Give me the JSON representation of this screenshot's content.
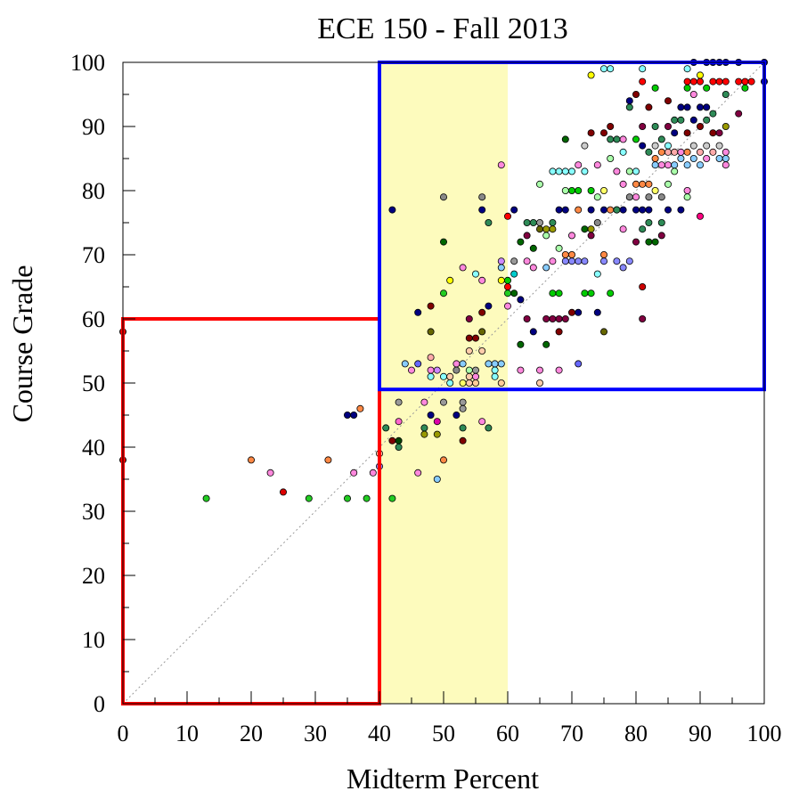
{
  "chart_data": {
    "type": "scatter",
    "title": "ECE 150 - Fall 2013",
    "xlabel": "Midterm Percent",
    "ylabel": "Course Grade",
    "xlim": [
      0,
      100
    ],
    "ylim": [
      0,
      100
    ],
    "xticks": [
      "0",
      "10",
      "20",
      "30",
      "40",
      "50",
      "60",
      "70",
      "80",
      "90",
      "100"
    ],
    "yticks": [
      "0",
      "10",
      "20",
      "30",
      "40",
      "50",
      "60",
      "70",
      "80",
      "90",
      "100"
    ],
    "grid": false,
    "diagonal_reference": true,
    "highlight_band": {
      "x": [
        40,
        60
      ],
      "color": "#fdfbbd"
    },
    "regions": [
      {
        "x": [
          0,
          40
        ],
        "y": [
          0,
          60
        ],
        "color": "#ff0000"
      },
      {
        "x": [
          40,
          100
        ],
        "y": [
          49,
          100
        ],
        "color": "#0000ff"
      }
    ],
    "points": [
      [
        0,
        58,
        "#cc0000"
      ],
      [
        0,
        38,
        "#cc0000"
      ],
      [
        13,
        32,
        "#22cc22"
      ],
      [
        20,
        38,
        "#ff8844"
      ],
      [
        23,
        36,
        "#ff88dd"
      ],
      [
        25,
        33,
        "#dd0000"
      ],
      [
        29,
        32,
        "#22cc22"
      ],
      [
        32,
        38,
        "#ff8844"
      ],
      [
        35,
        32,
        "#22cc22"
      ],
      [
        35,
        45,
        "#000080"
      ],
      [
        36,
        45,
        "#000080"
      ],
      [
        36,
        36,
        "#ff88dd"
      ],
      [
        37,
        46,
        "#ff8844"
      ],
      [
        38,
        32,
        "#22cc22"
      ],
      [
        39,
        36,
        "#ff88dd"
      ],
      [
        40,
        37,
        "#8888ff"
      ],
      [
        40,
        39,
        "#ffccaa"
      ],
      [
        41,
        43,
        "#2e8b57"
      ],
      [
        42,
        32,
        "#22cc22"
      ],
      [
        42,
        41,
        "#800000"
      ],
      [
        42,
        77,
        "#000080"
      ],
      [
        43,
        41,
        "#004400"
      ],
      [
        43,
        40,
        "#2e8b57"
      ],
      [
        43,
        44,
        "#ff66cc"
      ],
      [
        43,
        47,
        "#999999"
      ],
      [
        44,
        53,
        "#88ccff"
      ],
      [
        45,
        52,
        "#ff88dd"
      ],
      [
        46,
        36,
        "#ff88dd"
      ],
      [
        46,
        61,
        "#000080"
      ],
      [
        46,
        53,
        "#6666ff"
      ],
      [
        47,
        47,
        "#ff88dd"
      ],
      [
        47,
        43,
        "#2e8b57"
      ],
      [
        47,
        42,
        "#999900"
      ],
      [
        48,
        58,
        "#666600"
      ],
      [
        48,
        62,
        "#800000"
      ],
      [
        48,
        54,
        "#ffaaaa"
      ],
      [
        48,
        52,
        "#ff88dd"
      ],
      [
        48,
        51,
        "#88ffff"
      ],
      [
        48,
        45,
        "#000080"
      ],
      [
        49,
        52,
        "#cc88ff"
      ],
      [
        49,
        44,
        "#dd00aa"
      ],
      [
        49,
        42,
        "#999900"
      ],
      [
        49,
        35,
        "#88ccff"
      ],
      [
        50,
        79,
        "#888888"
      ],
      [
        50,
        72,
        "#006600"
      ],
      [
        50,
        64,
        "#22cc22"
      ],
      [
        50,
        51,
        "#88ffff"
      ],
      [
        50,
        47,
        "#999999"
      ],
      [
        50,
        38,
        "#ff8844"
      ],
      [
        51,
        51,
        "#ffccaa"
      ],
      [
        51,
        50,
        "#88ffff"
      ],
      [
        51,
        66,
        "#ffff00"
      ],
      [
        52,
        53,
        "#ff88dd"
      ],
      [
        52,
        52,
        "#888888"
      ],
      [
        52,
        45,
        "#000080"
      ],
      [
        53,
        53,
        "#88ccff"
      ],
      [
        53,
        50,
        "#ffff66"
      ],
      [
        53,
        47,
        "#999999"
      ],
      [
        53,
        46,
        "#999999"
      ],
      [
        53,
        43,
        "#2e8b57"
      ],
      [
        53,
        41,
        "#800000"
      ],
      [
        53,
        68,
        "#ff88dd"
      ],
      [
        54,
        60,
        "#800040"
      ],
      [
        54,
        57,
        "#800000"
      ],
      [
        54,
        55,
        "#ffccaa"
      ],
      [
        54,
        52,
        "#aaffaa"
      ],
      [
        54,
        51,
        "#ffccaa"
      ],
      [
        54,
        50,
        "#ffccaa"
      ],
      [
        55,
        67,
        "#88ffff"
      ],
      [
        55,
        57,
        "#800000"
      ],
      [
        55,
        51,
        "#ff88dd"
      ],
      [
        55,
        50,
        "#ffcc99"
      ],
      [
        55,
        52,
        "#999999"
      ],
      [
        56,
        79,
        "#888888"
      ],
      [
        56,
        77,
        "#000080"
      ],
      [
        56,
        66,
        "#ff88dd"
      ],
      [
        56,
        61,
        "#800000"
      ],
      [
        56,
        58,
        "#666600"
      ],
      [
        56,
        55,
        "#ffccaa"
      ],
      [
        56,
        44,
        "#ff88dd"
      ],
      [
        57,
        75,
        "#2e8b57"
      ],
      [
        57,
        62,
        "#000080"
      ],
      [
        57,
        53,
        "#88ccff"
      ],
      [
        57,
        43,
        "#2e8b57"
      ],
      [
        58,
        51,
        "#88ffff"
      ],
      [
        58,
        53,
        "#88ccff"
      ],
      [
        58,
        52,
        "#88ffff"
      ],
      [
        59,
        84,
        "#ff88dd"
      ],
      [
        59,
        69,
        "#cc88ff"
      ],
      [
        59,
        68,
        "#88ccff"
      ],
      [
        59,
        66,
        "#ffff00"
      ],
      [
        59,
        50,
        "#ffcc99"
      ],
      [
        59,
        53,
        "#88ccff"
      ],
      [
        60,
        76,
        "#ff0000"
      ],
      [
        60,
        66,
        "#00cc00"
      ],
      [
        60,
        65,
        "#ff0000"
      ],
      [
        60,
        64,
        "#22cc22"
      ],
      [
        60,
        62,
        "#ff88dd"
      ],
      [
        61,
        77,
        "#000080"
      ],
      [
        61,
        69,
        "#999999"
      ],
      [
        61,
        67,
        "#00cccc"
      ],
      [
        61,
        64,
        "#006600"
      ],
      [
        62,
        72,
        "#006600"
      ],
      [
        62,
        63,
        "#000080"
      ],
      [
        62,
        56,
        "#006600"
      ],
      [
        62,
        52,
        "#ff88dd"
      ],
      [
        63,
        75,
        "#2e8b57"
      ],
      [
        63,
        73,
        "#800040"
      ],
      [
        63,
        69,
        "#ff88dd"
      ],
      [
        63,
        60,
        "#800040"
      ],
      [
        64,
        75,
        "#2e8b57"
      ],
      [
        64,
        71,
        "#006600"
      ],
      [
        64,
        68,
        "#ff88dd"
      ],
      [
        64,
        58,
        "#000080"
      ],
      [
        65,
        81,
        "#aaffaa"
      ],
      [
        65,
        75,
        "#999999"
      ],
      [
        65,
        74,
        "#666600"
      ],
      [
        65,
        52,
        "#ff88dd"
      ],
      [
        65,
        50,
        "#ffccaa"
      ],
      [
        66,
        74,
        "#999900"
      ],
      [
        66,
        73,
        "#aaffaa"
      ],
      [
        66,
        68,
        "#88ccff"
      ],
      [
        66,
        60,
        "#800040"
      ],
      [
        66,
        56,
        "#006600"
      ],
      [
        67,
        83,
        "#88ffff"
      ],
      [
        67,
        75,
        "#2e8b57"
      ],
      [
        67,
        64,
        "#00cc00"
      ],
      [
        67,
        60,
        "#800040"
      ],
      [
        67,
        74,
        "#999900"
      ],
      [
        67,
        69,
        "#ff88dd"
      ],
      [
        68,
        83,
        "#88ffff"
      ],
      [
        68,
        77,
        "#000080"
      ],
      [
        68,
        71,
        "#aaffaa"
      ],
      [
        68,
        64,
        "#00cc00"
      ],
      [
        68,
        60,
        "#800040"
      ],
      [
        68,
        58,
        "#800000"
      ],
      [
        68,
        52,
        "#ff88dd"
      ],
      [
        69,
        88,
        "#006600"
      ],
      [
        69,
        83,
        "#88ffff"
      ],
      [
        69,
        80,
        "#aaffaa"
      ],
      [
        69,
        77,
        "#000080"
      ],
      [
        69,
        70,
        "#ff8844"
      ],
      [
        69,
        69,
        "#8888ff"
      ],
      [
        69,
        60,
        "#800040"
      ],
      [
        70,
        83,
        "#88ffff"
      ],
      [
        70,
        80,
        "#00cc00"
      ],
      [
        70,
        73,
        "#ff88dd"
      ],
      [
        70,
        70,
        "#ff8844"
      ],
      [
        70,
        69,
        "#8888ff"
      ],
      [
        70,
        61,
        "#800000"
      ],
      [
        71,
        84,
        "#ff88dd"
      ],
      [
        71,
        80,
        "#00cc00"
      ],
      [
        71,
        77,
        "#ff8844"
      ],
      [
        71,
        69,
        "#8888ff"
      ],
      [
        71,
        61,
        "#000080"
      ],
      [
        71,
        53,
        "#6666ff"
      ],
      [
        72,
        87,
        "#cccccc"
      ],
      [
        72,
        83,
        "#88ffff"
      ],
      [
        72,
        74,
        "#006600"
      ],
      [
        72,
        69,
        "#8888ff"
      ],
      [
        72,
        64,
        "#00cc00"
      ],
      [
        73,
        98,
        "#ffff00"
      ],
      [
        73,
        89,
        "#800000"
      ],
      [
        73,
        80,
        "#00cc00"
      ],
      [
        73,
        77,
        "#000080"
      ],
      [
        73,
        74,
        "#999900"
      ],
      [
        73,
        73,
        "#800040"
      ],
      [
        73,
        64,
        "#00cc00"
      ],
      [
        74,
        84,
        "#ff88dd"
      ],
      [
        74,
        79,
        "#aaffaa"
      ],
      [
        74,
        75,
        "#888888"
      ],
      [
        74,
        67,
        "#88ffff"
      ],
      [
        74,
        61,
        "#000080"
      ],
      [
        75,
        99,
        "#88ffff"
      ],
      [
        75,
        89,
        "#800000"
      ],
      [
        75,
        80,
        "#ffff66"
      ],
      [
        75,
        77,
        "#000080"
      ],
      [
        75,
        70,
        "#ff8844"
      ],
      [
        75,
        69,
        "#8888ff"
      ],
      [
        75,
        58,
        "#666600"
      ],
      [
        76,
        99,
        "#88ffff"
      ],
      [
        76,
        90,
        "#800000"
      ],
      [
        76,
        88,
        "#2e8b57"
      ],
      [
        76,
        85,
        "#aaffaa"
      ],
      [
        76,
        77,
        "#ff8844"
      ],
      [
        76,
        64,
        "#00cc00"
      ],
      [
        77,
        88,
        "#2e8b57"
      ],
      [
        77,
        83,
        "#ff88dd"
      ],
      [
        77,
        77,
        "#000080"
      ],
      [
        77,
        69,
        "#8888ff"
      ],
      [
        77,
        77,
        "#2e8b57"
      ],
      [
        78,
        88,
        "#ff88dd"
      ],
      [
        78,
        86,
        "#88ffff"
      ],
      [
        78,
        81,
        "#ff88dd"
      ],
      [
        78,
        77,
        "#000080"
      ],
      [
        78,
        74,
        "#ff88dd"
      ],
      [
        78,
        68,
        "#8888ff"
      ],
      [
        79,
        94,
        "#000080"
      ],
      [
        79,
        93,
        "#2e8b57"
      ],
      [
        79,
        83,
        "#aaffaa"
      ],
      [
        79,
        79,
        "#888888"
      ],
      [
        79,
        69,
        "#8888ff"
      ],
      [
        80,
        95,
        "#800000"
      ],
      [
        80,
        88,
        "#00cc00"
      ],
      [
        80,
        83,
        "#88ffff"
      ],
      [
        80,
        81,
        "#ff8844"
      ],
      [
        80,
        79,
        "#ff88dd"
      ],
      [
        80,
        77,
        "#000080"
      ],
      [
        80,
        72,
        "#800040"
      ],
      [
        81,
        99,
        "#88ffff"
      ],
      [
        81,
        97,
        "#ff0000"
      ],
      [
        81,
        90,
        "#800040"
      ],
      [
        81,
        87,
        "#000080"
      ],
      [
        81,
        81,
        "#ff8844"
      ],
      [
        81,
        77,
        "#000080"
      ],
      [
        81,
        74,
        "#2e8b57"
      ],
      [
        81,
        65,
        "#cc0000"
      ],
      [
        81,
        60,
        "#800040"
      ],
      [
        82,
        93,
        "#800000"
      ],
      [
        82,
        86,
        "#2e8b57"
      ],
      [
        82,
        81,
        "#ff8844"
      ],
      [
        82,
        79,
        "#888888"
      ],
      [
        82,
        77,
        "#000080"
      ],
      [
        82,
        75,
        "#2e8b57"
      ],
      [
        82,
        72,
        "#006600"
      ],
      [
        83,
        96,
        "#00cc00"
      ],
      [
        83,
        90,
        "#2e8b57"
      ],
      [
        83,
        87,
        "#cccccc"
      ],
      [
        83,
        85,
        "#ff8844"
      ],
      [
        83,
        84,
        "#88ccff"
      ],
      [
        83,
        80,
        "#ffff66"
      ],
      [
        83,
        72,
        "#006600"
      ],
      [
        84,
        88,
        "#2e8b57"
      ],
      [
        84,
        86,
        "#ff8844"
      ],
      [
        84,
        84,
        "#ff88dd"
      ],
      [
        84,
        79,
        "#888888"
      ],
      [
        84,
        75,
        "#2e8b57"
      ],
      [
        84,
        73,
        "#800040"
      ],
      [
        85,
        94,
        "#800000"
      ],
      [
        85,
        90,
        "#800040"
      ],
      [
        85,
        87,
        "#88ffff"
      ],
      [
        85,
        86,
        "#ffaaaa"
      ],
      [
        85,
        84,
        "#ff88dd"
      ],
      [
        85,
        81,
        "#aaffaa"
      ],
      [
        85,
        77,
        "#000080"
      ],
      [
        86,
        91,
        "#2e8b57"
      ],
      [
        86,
        89,
        "#000080"
      ],
      [
        86,
        86,
        "#ffaaaa"
      ],
      [
        86,
        84,
        "#88ccff"
      ],
      [
        86,
        83,
        "#aaffaa"
      ],
      [
        87,
        93,
        "#000080"
      ],
      [
        87,
        91,
        "#2e8b57"
      ],
      [
        87,
        86,
        "#ff88dd"
      ],
      [
        87,
        85,
        "#88ccff"
      ],
      [
        87,
        77,
        "#000080"
      ],
      [
        88,
        99,
        "#88ffff"
      ],
      [
        88,
        97,
        "#ff0000"
      ],
      [
        88,
        96,
        "#00cc00"
      ],
      [
        88,
        93,
        "#000080"
      ],
      [
        88,
        89,
        "#800000"
      ],
      [
        88,
        86,
        "#ff8844"
      ],
      [
        88,
        84,
        "#88ccff"
      ],
      [
        88,
        80,
        "#ff88dd"
      ],
      [
        88,
        79,
        "#aaffaa"
      ],
      [
        89,
        100,
        "#000080"
      ],
      [
        89,
        97,
        "#ff0000"
      ],
      [
        89,
        95,
        "#ff88dd"
      ],
      [
        89,
        91,
        "#000080"
      ],
      [
        89,
        87,
        "#cccccc"
      ],
      [
        89,
        85,
        "#88ccff"
      ],
      [
        90,
        98,
        "#ffff00"
      ],
      [
        90,
        97,
        "#ff0000"
      ],
      [
        90,
        93,
        "#000080"
      ],
      [
        90,
        90,
        "#800000"
      ],
      [
        90,
        86,
        "#ffaaaa"
      ],
      [
        90,
        84,
        "#88ccff"
      ],
      [
        90,
        76,
        "#ff0080"
      ],
      [
        91,
        100,
        "#000080"
      ],
      [
        91,
        96,
        "#00cc00"
      ],
      [
        91,
        93,
        "#000080"
      ],
      [
        91,
        91,
        "#2e8b57"
      ],
      [
        91,
        87,
        "#cccccc"
      ],
      [
        91,
        85,
        "#ff88dd"
      ],
      [
        92,
        100,
        "#000080"
      ],
      [
        92,
        97,
        "#ff0000"
      ],
      [
        92,
        92,
        "#2e8b57"
      ],
      [
        92,
        89,
        "#800000"
      ],
      [
        92,
        86,
        "#ffaaaa"
      ],
      [
        93,
        100,
        "#000080"
      ],
      [
        93,
        97,
        "#ff0000"
      ],
      [
        93,
        89,
        "#800040"
      ],
      [
        93,
        87,
        "#cccccc"
      ],
      [
        93,
        85,
        "#88ccff"
      ],
      [
        94,
        100,
        "#000080"
      ],
      [
        94,
        97,
        "#ff0000"
      ],
      [
        94,
        95,
        "#2e8b57"
      ],
      [
        94,
        90,
        "#999900"
      ],
      [
        94,
        86,
        "#ff88dd"
      ],
      [
        94,
        85,
        "#88ccff"
      ],
      [
        94,
        84,
        "#ff88dd"
      ],
      [
        96,
        100,
        "#000080"
      ],
      [
        96,
        97,
        "#ff0000"
      ],
      [
        96,
        92,
        "#800040"
      ],
      [
        97,
        96,
        "#00cc00"
      ],
      [
        97,
        97,
        "#ff0000"
      ],
      [
        98,
        97,
        "#ff0000"
      ],
      [
        100,
        100,
        "#000080"
      ],
      [
        100,
        97,
        "#000080"
      ]
    ]
  }
}
